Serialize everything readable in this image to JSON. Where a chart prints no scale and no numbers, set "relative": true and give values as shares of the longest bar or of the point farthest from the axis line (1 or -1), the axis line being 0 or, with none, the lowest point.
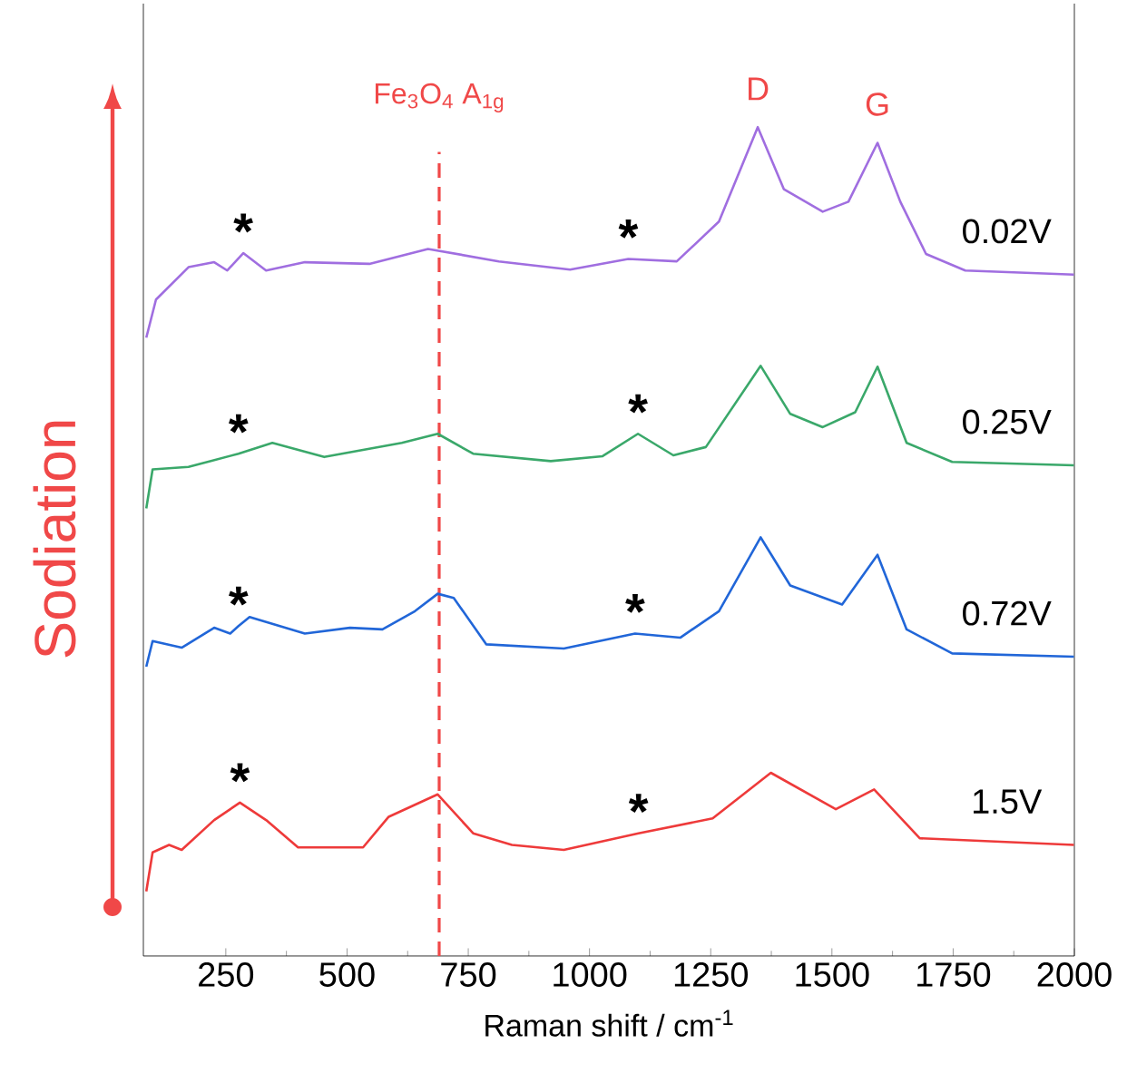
{
  "chart_data": {
    "type": "line",
    "relative": true,
    "xlabel": "Raman shift / cm$^{-1}$",
    "ylabel": "Sodiation",
    "xlim": [
      80,
      2000
    ],
    "xticks": [
      250,
      500,
      750,
      1000,
      1250,
      1500,
      1750,
      2000
    ],
    "line_style": "solid",
    "series": [
      {
        "name": "0.02V",
        "color": "#a06ee0",
        "x": [
          86,
          106,
          173,
          226,
          253,
          286,
          333,
          413,
          546,
          667,
          813,
          960,
          1080,
          1180,
          1267,
          1347,
          1401,
          1481,
          1534,
          1594,
          1641,
          1694,
          1775,
          1999
        ],
        "values": [
          0.746,
          0.792,
          0.831,
          0.837,
          0.827,
          0.848,
          0.827,
          0.837,
          0.835,
          0.853,
          0.838,
          0.828,
          0.841,
          0.838,
          0.886,
          1.0,
          0.925,
          0.898,
          0.91,
          0.981,
          0.91,
          0.847,
          0.827,
          0.822
        ]
      },
      {
        "name": "0.25V",
        "color": "#3aa86a",
        "x": [
          86,
          99,
          173,
          276,
          346,
          453,
          613,
          687,
          760,
          920,
          1027,
          1100,
          1173,
          1240,
          1353,
          1414,
          1481,
          1548,
          1594,
          1654,
          1748,
          1999
        ],
        "values": [
          0.54,
          0.587,
          0.59,
          0.606,
          0.619,
          0.602,
          0.619,
          0.63,
          0.606,
          0.597,
          0.603,
          0.63,
          0.604,
          0.614,
          0.712,
          0.654,
          0.638,
          0.656,
          0.711,
          0.619,
          0.596,
          0.592
        ]
      },
      {
        "name": "0.72V",
        "color": "#2166d8",
        "x": [
          86,
          99,
          159,
          226,
          259,
          276,
          299,
          413,
          506,
          573,
          640,
          687,
          720,
          787,
          947,
          1094,
          1187,
          1267,
          1353,
          1414,
          1521,
          1594,
          1654,
          1748,
          1999
        ],
        "values": [
          0.349,
          0.38,
          0.372,
          0.396,
          0.389,
          0.398,
          0.409,
          0.389,
          0.396,
          0.394,
          0.416,
          0.437,
          0.432,
          0.376,
          0.371,
          0.389,
          0.384,
          0.416,
          0.505,
          0.447,
          0.424,
          0.484,
          0.394,
          0.365,
          0.361
        ]
      },
      {
        "name": "1.5V",
        "color": "#ee3a3a",
        "x": [
          86,
          99,
          133,
          159,
          226,
          279,
          333,
          399,
          533,
          586,
          687,
          760,
          840,
          947,
          1101,
          1254,
          1374,
          1508,
          1587,
          1681,
          1999
        ],
        "values": [
          0.078,
          0.125,
          0.134,
          0.128,
          0.164,
          0.185,
          0.164,
          0.131,
          0.131,
          0.168,
          0.195,
          0.148,
          0.134,
          0.128,
          0.148,
          0.166,
          0.221,
          0.177,
          0.201,
          0.142,
          0.134
        ]
      }
    ],
    "ref_lines": [
      {
        "axis": "x",
        "value": 690,
        "label": "Fe$_{3}$O$_{4}$ A$_{1g}$",
        "color": "#f04848",
        "line_style": "dashed"
      }
    ],
    "annotations": [
      {
        "text": "D",
        "x": 1347,
        "y": 1.0
      },
      {
        "text": "G",
        "x": 1594,
        "y": 0.981
      },
      {
        "text": "*",
        "x": 286,
        "y": 0.848
      },
      {
        "text": "*",
        "x": 1080,
        "y": 0.841
      },
      {
        "text": "*",
        "x": 276,
        "y": 0.606
      },
      {
        "text": "*",
        "x": 1100,
        "y": 0.63
      },
      {
        "text": "*",
        "x": 276,
        "y": 0.398
      },
      {
        "text": "*",
        "x": 1094,
        "y": 0.389
      },
      {
        "text": "*",
        "x": 279,
        "y": 0.185
      },
      {
        "text": "*",
        "x": 1101,
        "y": 0.148
      }
    ]
  }
}
